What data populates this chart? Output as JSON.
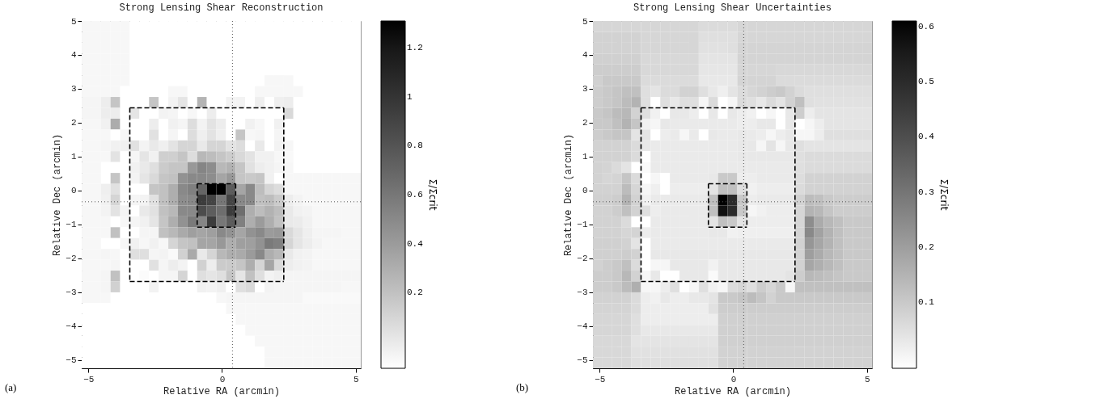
{
  "chart_data": [
    {
      "type": "heatmap",
      "title": "Strong Lensing Shear Reconstruction",
      "xlabel": "Relative RA (arcmin)",
      "ylabel": "Relative Dec (arcmin)",
      "clabel": "Σ/Σcrit",
      "xlim": [
        -5.25,
        5.19
      ],
      "ylim": [
        -5.24,
        5.0
      ],
      "xticks": [
        -5,
        0,
        5
      ],
      "yticks": [
        -5,
        -4,
        -3,
        -2,
        -1,
        0,
        1,
        2,
        3,
        4,
        5
      ],
      "clim": [
        -0.11,
        1.31
      ],
      "cticks": [
        0.2,
        0.4,
        0.6,
        0.8,
        1,
        1.2
      ],
      "colors": [
        "#ffffff",
        "#000000"
      ],
      "x": [
        -5.07,
        -4.71,
        -4.35,
        -3.99,
        -3.63,
        -3.27,
        -2.91,
        -2.55,
        -2.19,
        -1.83,
        -1.47,
        -1.11,
        -0.75,
        -0.39,
        -0.03,
        0.33,
        0.69,
        1.05,
        1.41,
        1.77,
        2.13,
        2.49,
        2.85,
        3.21,
        3.57,
        3.93,
        4.29,
        4.65,
        5.01
      ],
      "y": [
        4.84,
        4.52,
        4.2,
        3.88,
        3.56,
        3.24,
        2.92,
        2.6,
        2.28,
        1.96,
        1.64,
        1.32,
        1.0,
        0.68,
        0.36,
        0.04,
        -0.28,
        -0.6,
        -0.92,
        -1.24,
        -1.56,
        -1.88,
        -2.2,
        -2.52,
        -2.84,
        -3.16,
        -3.48,
        -3.8,
        -4.12,
        -4.44,
        -4.76,
        -5.08
      ],
      "cells": [
        [
          -0.07,
          -0.07,
          -0.07,
          -0.07,
          -0.07,
          -0.11,
          -0.11,
          -0.11,
          -0.11,
          -0.11,
          -0.11,
          -0.11,
          -0.11,
          -0.11,
          -0.11,
          -0.11,
          -0.11,
          -0.11,
          -0.11,
          -0.11,
          -0.11,
          -0.11,
          -0.11,
          -0.11,
          -0.11,
          -0.11,
          -0.11,
          -0.11,
          -0.11
        ],
        [
          -0.07,
          -0.07,
          -0.07,
          -0.07,
          -0.07,
          -0.11,
          -0.11,
          -0.11,
          -0.11,
          -0.11,
          -0.11,
          -0.11,
          -0.11,
          -0.11,
          -0.11,
          -0.11,
          -0.11,
          -0.11,
          -0.11,
          -0.11,
          -0.11,
          -0.11,
          -0.11,
          -0.11,
          -0.11,
          -0.11,
          -0.11,
          -0.11,
          -0.11
        ],
        [
          -0.07,
          -0.07,
          -0.07,
          -0.07,
          -0.07,
          -0.11,
          -0.11,
          -0.11,
          -0.11,
          -0.11,
          -0.11,
          -0.11,
          -0.11,
          -0.11,
          -0.11,
          -0.11,
          -0.11,
          -0.11,
          -0.11,
          -0.11,
          -0.11,
          -0.11,
          -0.11,
          -0.11,
          -0.11,
          -0.11,
          -0.11,
          -0.11,
          -0.11
        ],
        [
          -0.07,
          -0.07,
          -0.07,
          -0.07,
          -0.07,
          -0.11,
          -0.11,
          -0.11,
          -0.11,
          -0.11,
          -0.11,
          -0.11,
          -0.11,
          -0.11,
          -0.11,
          -0.11,
          -0.11,
          -0.11,
          -0.11,
          -0.11,
          -0.11,
          -0.11,
          -0.11,
          -0.11,
          -0.11,
          -0.11,
          -0.11,
          -0.11,
          -0.11
        ],
        [
          -0.07,
          -0.07,
          -0.07,
          -0.07,
          -0.07,
          -0.11,
          -0.11,
          -0.11,
          -0.11,
          -0.11,
          -0.11,
          -0.11,
          -0.11,
          -0.11,
          -0.11,
          -0.11,
          -0.11,
          -0.11,
          -0.11,
          -0.11,
          -0.11,
          -0.11,
          -0.11,
          -0.11,
          -0.11,
          -0.11,
          -0.11,
          -0.11,
          -0.11
        ],
        [
          -0.07,
          -0.07,
          -0.07,
          -0.07,
          -0.07,
          -0.11,
          -0.11,
          -0.11,
          -0.11,
          -0.11,
          -0.11,
          -0.11,
          -0.11,
          -0.11,
          -0.11,
          -0.11,
          -0.11,
          -0.11,
          -0.11,
          -0.07,
          -0.07,
          -0.07,
          -0.11,
          -0.11,
          -0.11,
          -0.11,
          -0.11,
          -0.11,
          -0.11
        ],
        [
          -0.07,
          -0.07,
          -0.07,
          -0.07,
          -0.11,
          -0.11,
          -0.11,
          -0.11,
          -0.11,
          -0.07,
          -0.07,
          -0.11,
          -0.11,
          -0.11,
          -0.11,
          -0.11,
          -0.11,
          -0.11,
          -0.07,
          -0.07,
          -0.07,
          -0.07,
          -0.07,
          -0.11,
          -0.11,
          -0.11,
          -0.11,
          -0.11,
          -0.11
        ],
        [
          -0.06,
          -0.06,
          -0.02,
          0.18,
          -0.11,
          -0.11,
          -0.11,
          0.18,
          -0.11,
          -0.05,
          0.02,
          -0.11,
          0.27,
          -0.11,
          -0.11,
          -0.05,
          -0.05,
          -0.11,
          -0.03,
          -0.11,
          -0.03,
          -0.02,
          -0.11,
          -0.11,
          -0.11,
          -0.11,
          -0.11,
          -0.11,
          -0.11
        ],
        [
          -0.06,
          -0.06,
          -0.02,
          -0.02,
          -0.11,
          0.02,
          -0.11,
          -0.11,
          -0.05,
          -0.06,
          -0.11,
          -0.07,
          -0.11,
          -0.02,
          -0.11,
          -0.11,
          -0.11,
          -0.11,
          -0.11,
          -0.11,
          -0.11,
          0.08,
          -0.11,
          -0.11,
          -0.11,
          -0.11,
          -0.11,
          -0.11,
          -0.11
        ],
        [
          -0.07,
          -0.07,
          -0.04,
          0.31,
          -0.11,
          -0.11,
          -0.11,
          -0.02,
          -0.11,
          -0.04,
          -0.06,
          0.06,
          -0.05,
          0.03,
          -0.02,
          -0.11,
          -0.11,
          -0.04,
          -0.07,
          -0.11,
          -0.04,
          -0.11,
          -0.11,
          -0.11,
          -0.11,
          -0.11,
          -0.11,
          -0.11,
          -0.11
        ],
        [
          -0.07,
          -0.07,
          -0.07,
          -0.11,
          -0.07,
          -0.11,
          -0.11,
          0.04,
          -0.11,
          -0.06,
          -0.11,
          0.06,
          -0.03,
          0.03,
          -0.03,
          -0.11,
          0.18,
          -0.07,
          -0.06,
          -0.11,
          -0.06,
          -0.11,
          -0.11,
          -0.11,
          -0.11,
          -0.11,
          -0.11,
          -0.11,
          -0.11
        ],
        [
          -0.07,
          -0.07,
          -0.06,
          -0.04,
          -0.04,
          0.04,
          -0.05,
          0.0,
          -0.03,
          0.03,
          0.1,
          0.1,
          0.0,
          0.1,
          0.1,
          0.03,
          0.06,
          -0.11,
          0.0,
          -0.11,
          -0.05,
          -0.07,
          -0.11,
          -0.11,
          -0.11,
          -0.11,
          -0.11,
          -0.11,
          -0.11
        ],
        [
          -0.07,
          -0.07,
          -0.07,
          0.03,
          -0.11,
          -0.06,
          0.02,
          -0.04,
          0.13,
          0.13,
          0.18,
          0.06,
          0.25,
          0.22,
          0.18,
          0.14,
          0.08,
          0.03,
          -0.04,
          -0.04,
          -0.07,
          -0.08,
          -0.11,
          -0.11,
          -0.11,
          -0.11,
          -0.11,
          -0.11,
          -0.11
        ],
        [
          -0.07,
          -0.07,
          -0.11,
          -0.11,
          -0.11,
          -0.04,
          0.0,
          0.05,
          0.15,
          0.18,
          0.18,
          0.42,
          0.52,
          0.48,
          0.25,
          0.28,
          0.18,
          0.04,
          -0.02,
          -0.04,
          -0.06,
          -0.07,
          -0.11,
          -0.11,
          -0.11,
          -0.11,
          -0.11,
          -0.11,
          -0.11
        ],
        [
          -0.07,
          -0.07,
          -0.11,
          0.18,
          -0.11,
          -0.05,
          0.02,
          0.08,
          0.18,
          0.2,
          0.45,
          0.5,
          0.5,
          0.48,
          0.35,
          0.42,
          0.18,
          0.16,
          0.18,
          -0.04,
          -0.11,
          -0.07,
          -0.07,
          -0.07,
          -0.07,
          -0.07,
          -0.07,
          -0.07,
          -0.07
        ],
        [
          -0.07,
          -0.07,
          -0.03,
          0.04,
          -0.11,
          -0.11,
          -0.11,
          0.18,
          0.2,
          0.3,
          0.5,
          0.55,
          0.7,
          1.31,
          1.31,
          0.75,
          0.35,
          0.5,
          0.22,
          0.1,
          0.06,
          -0.07,
          -0.07,
          -0.07,
          -0.07,
          -0.07,
          -0.07,
          -0.07,
          -0.07
        ],
        [
          -0.07,
          -0.07,
          -0.04,
          0.1,
          -0.11,
          -0.06,
          -0.05,
          0.04,
          0.2,
          0.3,
          0.48,
          0.5,
          0.95,
          0.9,
          0.6,
          0.9,
          0.5,
          0.5,
          0.2,
          0.22,
          0.15,
          -0.02,
          -0.05,
          -0.07,
          -0.07,
          -0.07,
          -0.07,
          -0.07,
          -0.07
        ],
        [
          -0.07,
          -0.07,
          -0.05,
          0.03,
          -0.06,
          -0.11,
          0.0,
          0.04,
          0.2,
          0.25,
          0.5,
          0.5,
          0.85,
          0.75,
          0.65,
          0.95,
          0.65,
          0.3,
          0.22,
          0.28,
          0.22,
          0.0,
          -0.04,
          -0.05,
          -0.07,
          -0.07,
          -0.07,
          -0.07,
          -0.07
        ],
        [
          -0.07,
          -0.07,
          -0.07,
          -0.11,
          -0.07,
          -0.06,
          -0.04,
          0.02,
          0.18,
          0.3,
          0.45,
          0.58,
          0.52,
          0.95,
          0.6,
          0.75,
          0.55,
          0.3,
          0.4,
          0.3,
          0.2,
          0.0,
          -0.01,
          -0.04,
          -0.07,
          -0.07,
          -0.07,
          -0.07,
          -0.07
        ],
        [
          -0.07,
          -0.07,
          -0.07,
          0.2,
          -0.11,
          -0.11,
          -0.06,
          -0.06,
          0.2,
          0.25,
          0.32,
          0.38,
          0.35,
          0.38,
          0.5,
          0.45,
          0.35,
          0.45,
          0.5,
          0.4,
          0.42,
          0.08,
          0.02,
          -0.03,
          -0.06,
          -0.06,
          -0.06,
          -0.07,
          -0.07
        ],
        [
          -0.07,
          -0.07,
          -0.11,
          -0.11,
          -0.07,
          -0.04,
          -0.07,
          -0.04,
          -0.07,
          0.1,
          0.18,
          0.2,
          0.35,
          0.35,
          0.42,
          0.3,
          0.38,
          0.38,
          0.45,
          0.58,
          0.55,
          0.1,
          0.02,
          -0.02,
          -0.05,
          -0.07,
          -0.07,
          -0.07,
          -0.07
        ],
        [
          -0.07,
          -0.07,
          -0.06,
          -0.07,
          -0.11,
          0.05,
          0.05,
          -0.06,
          -0.05,
          -0.08,
          0.12,
          0.32,
          0.0,
          0.1,
          0.25,
          0.3,
          0.32,
          0.4,
          0.5,
          0.3,
          0.25,
          0.0,
          -0.04,
          -0.05,
          -0.07,
          -0.07,
          -0.07,
          -0.07,
          -0.07
        ],
        [
          -0.07,
          -0.07,
          -0.07,
          -0.06,
          -0.11,
          -0.11,
          -0.11,
          0.04,
          -0.06,
          -0.02,
          -0.05,
          -0.11,
          0.12,
          -0.02,
          0.15,
          0.15,
          0.18,
          0.3,
          0.1,
          0.35,
          0.08,
          -0.02,
          -0.04,
          -0.05,
          -0.07,
          -0.07,
          -0.07,
          -0.07,
          -0.07
        ],
        [
          -0.07,
          -0.07,
          -0.06,
          0.2,
          -0.11,
          -0.11,
          -0.09,
          -0.11,
          -0.06,
          -0.06,
          0.1,
          -0.11,
          0.05,
          0.02,
          0.05,
          0.18,
          0.02,
          0.2,
          0.05,
          -0.05,
          -0.03,
          -0.06,
          -0.06,
          -0.06,
          -0.06,
          -0.06,
          -0.06,
          -0.06,
          -0.06
        ],
        [
          -0.07,
          -0.07,
          -0.06,
          0.12,
          -0.11,
          -0.11,
          -0.11,
          -0.05,
          -0.11,
          -0.11,
          -0.11,
          -0.11,
          -0.04,
          -0.05,
          -0.03,
          -0.11,
          0.05,
          0.08,
          -0.11,
          -0.05,
          -0.06,
          -0.06,
          -0.06,
          -0.06,
          -0.06,
          -0.06,
          -0.06,
          -0.07,
          -0.07
        ],
        [
          -0.07,
          -0.07,
          -0.07,
          -0.11,
          -0.11,
          -0.11,
          -0.11,
          -0.11,
          -0.11,
          -0.11,
          -0.11,
          -0.11,
          -0.11,
          -0.11,
          -0.07,
          -0.06,
          -0.06,
          -0.06,
          -0.06,
          -0.06,
          -0.06,
          -0.06,
          -0.06,
          -0.08,
          -0.08,
          -0.08,
          -0.08,
          -0.08,
          -0.08
        ],
        [
          -0.11,
          -0.11,
          -0.11,
          -0.11,
          -0.11,
          -0.11,
          -0.11,
          -0.11,
          -0.11,
          -0.11,
          -0.11,
          -0.11,
          -0.11,
          -0.11,
          -0.11,
          -0.07,
          -0.07,
          -0.07,
          -0.07,
          -0.07,
          -0.07,
          -0.07,
          -0.07,
          -0.07,
          -0.07,
          -0.07,
          -0.07,
          -0.07,
          -0.07
        ],
        [
          -0.11,
          -0.11,
          -0.11,
          -0.11,
          -0.11,
          -0.11,
          -0.11,
          -0.11,
          -0.11,
          -0.11,
          -0.11,
          -0.11,
          -0.11,
          -0.11,
          -0.11,
          -0.11,
          -0.07,
          -0.07,
          -0.07,
          -0.07,
          -0.07,
          -0.07,
          -0.07,
          -0.07,
          -0.07,
          -0.07,
          -0.07,
          -0.07,
          -0.07
        ],
        [
          -0.11,
          -0.11,
          -0.11,
          -0.11,
          -0.11,
          -0.11,
          -0.11,
          -0.11,
          -0.11,
          -0.11,
          -0.11,
          -0.11,
          -0.11,
          -0.11,
          -0.11,
          -0.11,
          -0.11,
          -0.07,
          -0.07,
          -0.07,
          -0.07,
          -0.07,
          -0.07,
          -0.07,
          -0.07,
          -0.07,
          -0.07,
          -0.07,
          -0.07
        ],
        [
          -0.11,
          -0.11,
          -0.11,
          -0.11,
          -0.11,
          -0.11,
          -0.11,
          -0.11,
          -0.11,
          -0.11,
          -0.11,
          -0.11,
          -0.11,
          -0.11,
          -0.11,
          -0.11,
          -0.11,
          -0.11,
          -0.07,
          -0.07,
          -0.07,
          -0.07,
          -0.07,
          -0.07,
          -0.07,
          -0.07,
          -0.07,
          -0.07,
          -0.07
        ],
        [
          -0.11,
          -0.11,
          -0.11,
          -0.11,
          -0.11,
          -0.11,
          -0.11,
          -0.11,
          -0.11,
          -0.11,
          -0.11,
          -0.11,
          -0.11,
          -0.11,
          -0.11,
          -0.11,
          -0.11,
          -0.11,
          -0.11,
          -0.07,
          -0.07,
          -0.07,
          -0.07,
          -0.07,
          -0.07,
          -0.07,
          -0.07,
          -0.07,
          -0.07
        ],
        [
          -0.11,
          -0.11,
          -0.11,
          -0.11,
          -0.11,
          -0.11,
          -0.11,
          -0.11,
          -0.11,
          -0.11,
          -0.11,
          -0.11,
          -0.11,
          -0.11,
          -0.11,
          -0.11,
          -0.11,
          -0.11,
          -0.11,
          -0.07,
          -0.07,
          -0.07,
          -0.07,
          -0.07,
          -0.07,
          -0.07,
          -0.07,
          -0.07,
          -0.07
        ]
      ],
      "series": [
        {
          "type": "line",
          "color": "#000000",
          "line_style": "dashed",
          "x": [
            -3.45,
            2.31
          ],
          "values": [
            2.44,
            2.44
          ]
        },
        {
          "type": "line",
          "color": "#000000",
          "line_style": "dashed",
          "x": [
            -3.45,
            2.31
          ],
          "values": [
            -2.68,
            -2.68
          ]
        },
        {
          "type": "line",
          "color": "#000000",
          "line_style": "dashed",
          "x": [
            -3.45,
            -3.45
          ],
          "values": [
            2.44,
            -2.68
          ]
        },
        {
          "type": "line",
          "color": "#000000",
          "line_style": "dashed",
          "x": [
            2.31,
            2.31
          ],
          "values": [
            2.44,
            -2.68
          ]
        },
        {
          "type": "line",
          "color": "#000000",
          "line_style": "dashed",
          "x": [
            -0.93,
            0.51
          ],
          "values": [
            0.2,
            0.2
          ]
        },
        {
          "type": "line",
          "color": "#000000",
          "line_style": "dashed",
          "x": [
            -0.93,
            0.51
          ],
          "values": [
            -1.08,
            -1.08
          ]
        },
        {
          "type": "line",
          "color": "#000000",
          "line_style": "dashed",
          "x": [
            -0.93,
            -0.93
          ],
          "values": [
            0.2,
            -1.08
          ]
        },
        {
          "type": "line",
          "color": "#000000",
          "line_style": "dashed",
          "x": [
            0.51,
            0.51
          ],
          "values": [
            0.2,
            -1.08
          ]
        }
      ],
      "ref_lines": [
        {
          "axis": "x",
          "value": 0.39,
          "color": "#555555",
          "line_style": "dotted"
        },
        {
          "axis": "y",
          "value": -0.33,
          "color": "#555555",
          "line_style": "dotted"
        }
      ],
      "annotations": [
        "(a)"
      ]
    },
    {
      "type": "heatmap",
      "title": "Strong Lensing Shear Uncertainties",
      "xlabel": "Relative RA (arcmin)",
      "ylabel": "Relative Dec (arcmin)",
      "clabel": "Σ/Σcrit",
      "xlim": [
        -5.25,
        5.19
      ],
      "ylim": [
        -5.24,
        5.0
      ],
      "xticks": [
        -5,
        0,
        5
      ],
      "yticks": [
        -5,
        -4,
        -3,
        -2,
        -1,
        0,
        1,
        2,
        3,
        4,
        5
      ],
      "clim": [
        -0.02,
        0.61
      ],
      "cticks": [
        0.1,
        0.2,
        0.3,
        0.4,
        0.5,
        0.6
      ],
      "colors": [
        "#ffffff",
        "#000000"
      ],
      "x": [
        -5.07,
        -4.71,
        -4.35,
        -3.99,
        -3.63,
        -3.27,
        -2.91,
        -2.55,
        -2.19,
        -1.83,
        -1.47,
        -1.11,
        -0.75,
        -0.39,
        -0.03,
        0.33,
        0.69,
        1.05,
        1.41,
        1.77,
        2.13,
        2.49,
        2.85,
        3.21,
        3.57,
        3.93,
        4.29,
        4.65,
        5.01
      ],
      "y": [
        4.84,
        4.52,
        4.2,
        3.88,
        3.56,
        3.24,
        2.92,
        2.6,
        2.28,
        1.96,
        1.64,
        1.32,
        1.0,
        0.68,
        0.36,
        0.04,
        -0.28,
        -0.6,
        -0.92,
        -1.24,
        -1.56,
        -1.88,
        -2.2,
        -2.52,
        -2.84,
        -3.16,
        -3.48,
        -3.8,
        -4.12,
        -4.44,
        -4.76,
        -5.08
      ],
      "cells": [
        [
          0.07,
          0.07,
          0.07,
          0.07,
          0.07,
          0.07,
          0.07,
          0.07,
          0.07,
          0.07,
          0.07,
          0.06,
          0.06,
          0.06,
          0.06,
          0.07,
          0.07,
          0.07,
          0.07,
          0.07,
          0.07,
          0.07,
          0.07,
          0.07,
          0.07,
          0.07,
          0.07,
          0.07,
          0.07
        ],
        [
          0.08,
          0.08,
          0.08,
          0.08,
          0.08,
          0.07,
          0.07,
          0.07,
          0.07,
          0.07,
          0.07,
          0.05,
          0.05,
          0.05,
          0.05,
          0.07,
          0.07,
          0.07,
          0.07,
          0.07,
          0.07,
          0.07,
          0.07,
          0.07,
          0.07,
          0.07,
          0.07,
          0.07,
          0.07
        ],
        [
          0.08,
          0.08,
          0.08,
          0.08,
          0.08,
          0.07,
          0.07,
          0.07,
          0.07,
          0.07,
          0.07,
          0.045,
          0.045,
          0.045,
          0.05,
          0.075,
          0.075,
          0.075,
          0.075,
          0.075,
          0.075,
          0.075,
          0.075,
          0.075,
          0.075,
          0.075,
          0.075,
          0.075,
          0.075
        ],
        [
          0.085,
          0.085,
          0.085,
          0.085,
          0.085,
          0.065,
          0.065,
          0.065,
          0.065,
          0.065,
          0.065,
          0.04,
          0.04,
          0.04,
          0.04,
          0.075,
          0.075,
          0.075,
          0.075,
          0.075,
          0.075,
          0.075,
          0.075,
          0.075,
          0.075,
          0.075,
          0.075,
          0.075,
          0.075
        ],
        [
          0.09,
          0.09,
          0.09,
          0.09,
          0.09,
          0.065,
          0.065,
          0.065,
          0.065,
          0.065,
          0.065,
          0.035,
          0.035,
          0.035,
          0.035,
          0.07,
          0.07,
          0.07,
          0.07,
          0.065,
          0.065,
          0.065,
          0.065,
          0.065,
          0.065,
          0.065,
          0.065,
          0.065,
          0.065
        ],
        [
          0.085,
          0.1,
          0.1,
          0.1,
          0.1,
          0.06,
          0.06,
          0.06,
          0.06,
          0.06,
          0.06,
          0.03,
          0.03,
          0.03,
          0.03,
          0.075,
          0.075,
          0.075,
          0.075,
          0.06,
          0.06,
          0.06,
          0.06,
          0.06,
          0.06,
          0.06,
          0.06,
          0.06,
          0.06
        ],
        [
          0.09,
          0.1,
          0.11,
          0.12,
          0.12,
          0.05,
          0.04,
          0.06,
          0.06,
          0.08,
          0.08,
          0.05,
          0.03,
          0.015,
          0.04,
          0.06,
          0.07,
          0.08,
          0.09,
          0.1,
          0.08,
          0.06,
          0.05,
          0.05,
          0.05,
          0.05,
          0.05,
          0.05,
          0.05
        ],
        [
          0.09,
          0.1,
          0.11,
          0.13,
          0.15,
          0.05,
          -0.02,
          0.05,
          0.03,
          0.05,
          0.05,
          0.0,
          0.06,
          -0.02,
          0.0,
          0.06,
          0.05,
          0.03,
          0.06,
          0.04,
          0.08,
          0.12,
          0.05,
          0.045,
          0.045,
          0.045,
          0.045,
          0.045,
          0.045
        ],
        [
          0.1,
          0.11,
          0.13,
          0.14,
          0.08,
          0.05,
          0.01,
          -0.02,
          0.03,
          0.03,
          0.02,
          -0.02,
          0.03,
          -0.02,
          0.03,
          0.02,
          0.01,
          -0.02,
          0.0,
          -0.02,
          0.03,
          0.09,
          0.02,
          0.04,
          0.04,
          0.04,
          0.04,
          0.04,
          0.04
        ],
        [
          0.1,
          0.1,
          0.12,
          0.15,
          0.11,
          0.01,
          0.0,
          0.03,
          0.025,
          0.025,
          0.025,
          0.025,
          0.025,
          0.025,
          0.025,
          0.02,
          0.02,
          0.03,
          0.03,
          -0.02,
          0.03,
          -0.02,
          0.0,
          0.02,
          0.04,
          0.04,
          0.04,
          0.04,
          0.04
        ],
        [
          0.09,
          0.1,
          0.11,
          0.11,
          0.04,
          0.04,
          -0.02,
          0.02,
          0.025,
          0.0,
          0.025,
          -0.02,
          0.03,
          0.025,
          0.025,
          0.03,
          0.025,
          0.02,
          0.0,
          0.02,
          0.03,
          0.0,
          0.0,
          0.02,
          0.05,
          0.05,
          0.05,
          0.05,
          0.05
        ],
        [
          0.08,
          0.08,
          0.08,
          0.08,
          0.06,
          0.03,
          0.025,
          0.025,
          0.025,
          0.025,
          0.025,
          0.025,
          0.025,
          0.025,
          0.025,
          0.03,
          0.03,
          0.0,
          0.04,
          0.0,
          0.03,
          0.05,
          0.04,
          0.04,
          0.04,
          0.04,
          0.04,
          0.04,
          0.04
        ],
        [
          0.08,
          0.08,
          0.08,
          0.08,
          0.06,
          -0.02,
          0.025,
          0.025,
          0.025,
          0.025,
          0.025,
          0.025,
          0.025,
          0.025,
          0.025,
          0.03,
          0.03,
          0.03,
          0.03,
          0.03,
          0.03,
          0.05,
          0.06,
          0.06,
          0.06,
          0.06,
          0.06,
          0.06,
          0.06
        ],
        [
          0.08,
          0.075,
          0.06,
          0.04,
          -0.02,
          -0.01,
          0.025,
          0.025,
          0.025,
          0.025,
          0.025,
          0.025,
          0.025,
          0.025,
          0.025,
          0.025,
          0.025,
          0.025,
          0.025,
          0.025,
          0.025,
          0.05,
          0.06,
          0.06,
          0.06,
          0.06,
          0.06,
          0.06,
          0.06
        ],
        [
          0.08,
          0.07,
          0.075,
          0.11,
          0.06,
          -0.02,
          0.0,
          -0.02,
          0.025,
          0.025,
          0.025,
          0.025,
          0.03,
          0.1,
          0.1,
          0.02,
          0.02,
          0.025,
          0.025,
          0.025,
          0.025,
          0.055,
          0.08,
          0.08,
          0.08,
          0.08,
          0.08,
          0.08,
          0.08
        ],
        [
          0.08,
          0.08,
          0.08,
          0.13,
          0.07,
          0.0,
          0.015,
          -0.02,
          0.02,
          0.02,
          0.02,
          0.02,
          0.04,
          0.12,
          0.12,
          0.05,
          0.01,
          0.02,
          0.02,
          0.02,
          0.02,
          0.06,
          0.08,
          0.08,
          0.08,
          0.08,
          0.08,
          0.08,
          0.08
        ],
        [
          0.085,
          0.085,
          0.09,
          0.15,
          0.08,
          0.01,
          0.025,
          0.025,
          0.025,
          0.025,
          0.025,
          0.025,
          0.12,
          0.61,
          0.5,
          0.1,
          0.02,
          0.025,
          0.025,
          0.025,
          0.025,
          0.08,
          0.13,
          0.12,
          0.1,
          0.09,
          0.09,
          0.09,
          0.09
        ],
        [
          0.08,
          0.08,
          0.09,
          0.12,
          0.08,
          0.05,
          0.02,
          0.025,
          0.025,
          0.025,
          0.025,
          0.025,
          0.12,
          0.58,
          0.5,
          0.1,
          0.0,
          0.01,
          0.02,
          0.02,
          0.02,
          0.07,
          0.15,
          0.14,
          0.11,
          0.09,
          0.09,
          0.09,
          0.09
        ],
        [
          0.08,
          0.08,
          0.08,
          0.06,
          -0.02,
          -0.02,
          0.025,
          0.025,
          0.025,
          0.025,
          0.025,
          0.025,
          0.04,
          0.12,
          0.1,
          0.04,
          0.02,
          0.02,
          0.02,
          0.02,
          0.02,
          0.07,
          0.24,
          0.17,
          0.14,
          0.12,
          0.1,
          0.1,
          0.1
        ],
        [
          0.08,
          0.08,
          0.08,
          0.07,
          0.075,
          0.02,
          0.025,
          0.025,
          0.025,
          0.025,
          0.025,
          0.025,
          0.03,
          0.03,
          0.01,
          0.015,
          0.015,
          0.015,
          0.015,
          0.015,
          0.015,
          0.075,
          0.25,
          0.19,
          0.15,
          0.12,
          0.1,
          0.1,
          0.1
        ],
        [
          0.085,
          0.085,
          0.085,
          0.08,
          0.04,
          -0.02,
          0.025,
          0.025,
          0.025,
          0.025,
          0.025,
          0.025,
          0.025,
          0.025,
          0.025,
          0.025,
          0.025,
          0.025,
          0.025,
          0.025,
          0.025,
          0.08,
          0.22,
          0.18,
          0.15,
          0.12,
          0.1,
          0.1,
          0.1
        ],
        [
          0.085,
          0.085,
          0.085,
          0.09,
          0.08,
          -0.02,
          0.03,
          0.03,
          0.03,
          0.03,
          0.03,
          0.03,
          0.03,
          0.03,
          0.03,
          0.03,
          0.03,
          0.03,
          0.03,
          0.03,
          0.03,
          0.08,
          0.2,
          0.17,
          0.14,
          0.12,
          0.1,
          0.1,
          0.1
        ],
        [
          0.08,
          0.09,
          0.1,
          0.12,
          0.06,
          -0.02,
          0.0,
          0.0,
          0.03,
          0.03,
          0.03,
          0.03,
          0.01,
          0.03,
          0.03,
          0.03,
          0.03,
          0.03,
          0.03,
          0.03,
          0.03,
          0.08,
          0.18,
          0.16,
          0.14,
          0.12,
          0.1,
          0.1,
          0.1
        ],
        [
          0.09,
          0.09,
          0.1,
          0.14,
          0.08,
          0.0,
          0.03,
          -0.02,
          -0.02,
          0.03,
          0.03,
          0.03,
          -0.01,
          0.03,
          0.03,
          0.03,
          0.03,
          0.03,
          0.03,
          0.03,
          0.04,
          0.09,
          0.14,
          0.13,
          0.12,
          0.11,
          0.1,
          0.1,
          0.1
        ],
        [
          0.09,
          0.09,
          0.1,
          0.13,
          0.16,
          0.0,
          0.0,
          0.02,
          0.05,
          -0.02,
          0.0,
          0.05,
          0.01,
          0.0,
          0.06,
          0.07,
          0.05,
          0.09,
          0.07,
          0.1,
          0.0,
          0.12,
          0.12,
          0.12,
          0.12,
          0.12,
          0.12,
          0.12,
          0.12
        ],
        [
          0.08,
          0.08,
          0.08,
          0.08,
          0.06,
          0.02,
          0.01,
          0.03,
          0.02,
          0.02,
          0.03,
          0.03,
          0.04,
          0.1,
          0.1,
          0.11,
          0.13,
          0.11,
          0.08,
          0.1,
          0.1,
          0.1,
          0.1,
          0.1,
          0.1,
          0.1,
          0.1,
          0.1,
          0.1
        ],
        [
          0.075,
          0.075,
          0.075,
          0.075,
          0.06,
          0.02,
          0.02,
          0.02,
          0.02,
          0.02,
          0.02,
          0.02,
          0.045,
          0.09,
          0.09,
          0.09,
          0.09,
          0.09,
          0.09,
          0.09,
          0.09,
          0.09,
          0.09,
          0.09,
          0.09,
          0.09,
          0.09,
          0.09,
          0.09
        ],
        [
          0.07,
          0.07,
          0.07,
          0.07,
          0.05,
          0.02,
          0.02,
          0.02,
          0.02,
          0.02,
          0.02,
          0.02,
          0.02,
          0.085,
          0.085,
          0.085,
          0.085,
          0.085,
          0.085,
          0.085,
          0.085,
          0.085,
          0.085,
          0.085,
          0.085,
          0.085,
          0.085,
          0.085,
          0.085
        ],
        [
          0.07,
          0.07,
          0.07,
          0.07,
          0.05,
          0.03,
          0.03,
          0.03,
          0.03,
          0.03,
          0.03,
          0.03,
          0.03,
          0.085,
          0.085,
          0.085,
          0.085,
          0.085,
          0.085,
          0.085,
          0.085,
          0.085,
          0.085,
          0.085,
          0.085,
          0.085,
          0.085,
          0.085,
          0.085
        ],
        [
          0.065,
          0.065,
          0.065,
          0.065,
          0.04,
          0.04,
          0.04,
          0.04,
          0.04,
          0.04,
          0.04,
          0.04,
          0.04,
          0.085,
          0.085,
          0.085,
          0.085,
          0.085,
          0.085,
          0.085,
          0.085,
          0.085,
          0.085,
          0.085,
          0.085,
          0.085,
          0.085,
          0.085,
          0.085
        ],
        [
          0.065,
          0.065,
          0.065,
          0.065,
          0.045,
          0.045,
          0.045,
          0.045,
          0.045,
          0.045,
          0.045,
          0.045,
          0.045,
          0.08,
          0.08,
          0.08,
          0.08,
          0.08,
          0.08,
          0.08,
          0.08,
          0.08,
          0.08,
          0.08,
          0.08,
          0.08,
          0.08,
          0.08,
          0.08
        ],
        [
          0.065,
          0.065,
          0.065,
          0.065,
          0.05,
          0.05,
          0.05,
          0.05,
          0.05,
          0.05,
          0.05,
          0.05,
          0.05,
          0.08,
          0.08,
          0.08,
          0.08,
          0.08,
          0.08,
          0.08,
          0.08,
          0.08,
          0.08,
          0.08,
          0.08,
          0.08,
          0.08,
          0.08,
          0.08
        ]
      ],
      "series": [
        {
          "type": "line",
          "color": "#000000",
          "line_style": "dashed",
          "x": [
            -3.45,
            2.31
          ],
          "values": [
            2.44,
            2.44
          ]
        },
        {
          "type": "line",
          "color": "#000000",
          "line_style": "dashed",
          "x": [
            -3.45,
            2.31
          ],
          "values": [
            -2.68,
            -2.68
          ]
        },
        {
          "type": "line",
          "color": "#000000",
          "line_style": "dashed",
          "x": [
            -3.45,
            -3.45
          ],
          "values": [
            2.44,
            -2.68
          ]
        },
        {
          "type": "line",
          "color": "#000000",
          "line_style": "dashed",
          "x": [
            2.31,
            2.31
          ],
          "values": [
            2.44,
            -2.68
          ]
        },
        {
          "type": "line",
          "color": "#000000",
          "line_style": "dashed",
          "x": [
            -0.93,
            0.51
          ],
          "values": [
            0.2,
            0.2
          ]
        },
        {
          "type": "line",
          "color": "#000000",
          "line_style": "dashed",
          "x": [
            -0.93,
            0.51
          ],
          "values": [
            -1.08,
            -1.08
          ]
        },
        {
          "type": "line",
          "color": "#000000",
          "line_style": "dashed",
          "x": [
            -0.93,
            -0.93
          ],
          "values": [
            0.2,
            -1.08
          ]
        },
        {
          "type": "line",
          "color": "#000000",
          "line_style": "dashed",
          "x": [
            0.51,
            0.51
          ],
          "values": [
            0.2,
            -1.08
          ]
        }
      ],
      "ref_lines": [
        {
          "axis": "x",
          "value": 0.39,
          "color": "#555555",
          "line_style": "dotted"
        },
        {
          "axis": "y",
          "value": -0.33,
          "color": "#555555",
          "line_style": "dotted"
        }
      ],
      "annotations": [
        "(b)"
      ]
    }
  ]
}
